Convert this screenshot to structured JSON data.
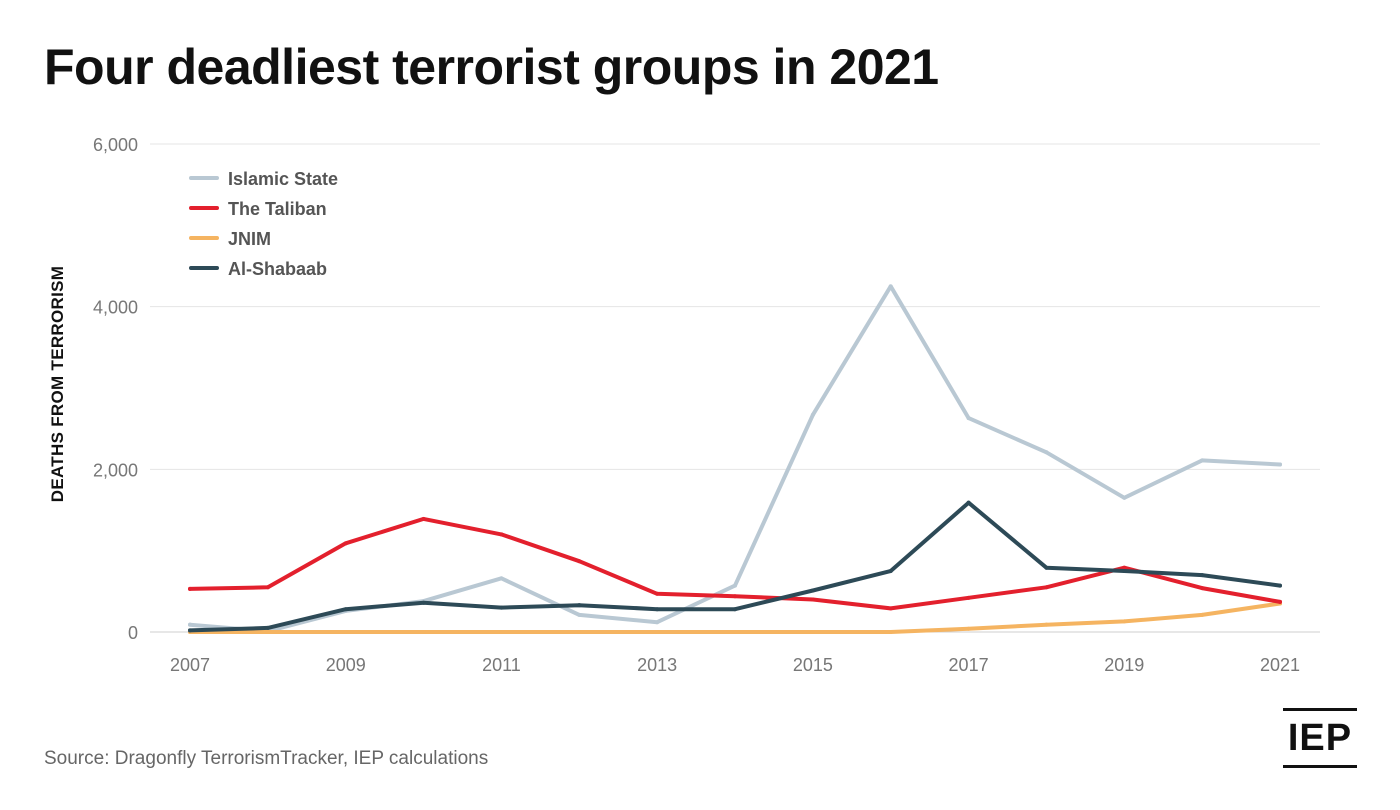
{
  "title": "Four deadliest terrorist groups in 2021",
  "source": "Source: Dragonfly TerrorismTracker, IEP calculations",
  "logo_text": "IEP",
  "chart_data": {
    "type": "line",
    "title": "Four deadliest terrorist groups in 2021",
    "xlabel": "",
    "ylabel": "DEATHS FROM TERRORISM",
    "x": [
      2007,
      2008,
      2009,
      2010,
      2011,
      2012,
      2013,
      2014,
      2015,
      2016,
      2017,
      2018,
      2019,
      2020,
      2021
    ],
    "x_tick_labels": [
      "2007",
      "2009",
      "2011",
      "2013",
      "2015",
      "2017",
      "2019",
      "2021"
    ],
    "y_ticks": [
      0,
      2000,
      4000,
      6000
    ],
    "y_tick_labels": [
      "0",
      "2,000",
      "4,000",
      "6,000"
    ],
    "ylim": [
      0,
      6000
    ],
    "grid": true,
    "legend_position": "top-left",
    "series": [
      {
        "name": "Islamic State",
        "color": "#b9c8d3",
        "values": [
          90,
          10,
          260,
          380,
          660,
          210,
          120,
          570,
          2670,
          4250,
          2630,
          2210,
          1650,
          2110,
          2060
        ]
      },
      {
        "name": "The Taliban",
        "color": "#e3202d",
        "values": [
          530,
          550,
          1090,
          1390,
          1200,
          870,
          470,
          440,
          400,
          290,
          420,
          550,
          790,
          540,
          370
        ]
      },
      {
        "name": "JNIM",
        "color": "#f5b461",
        "values": [
          0,
          0,
          0,
          0,
          0,
          0,
          0,
          0,
          0,
          0,
          40,
          90,
          130,
          210,
          350
        ]
      },
      {
        "name": "Al-Shabaab",
        "color": "#2d4a57",
        "values": [
          20,
          50,
          280,
          360,
          300,
          330,
          280,
          280,
          510,
          750,
          1590,
          790,
          750,
          700,
          570
        ]
      }
    ]
  }
}
